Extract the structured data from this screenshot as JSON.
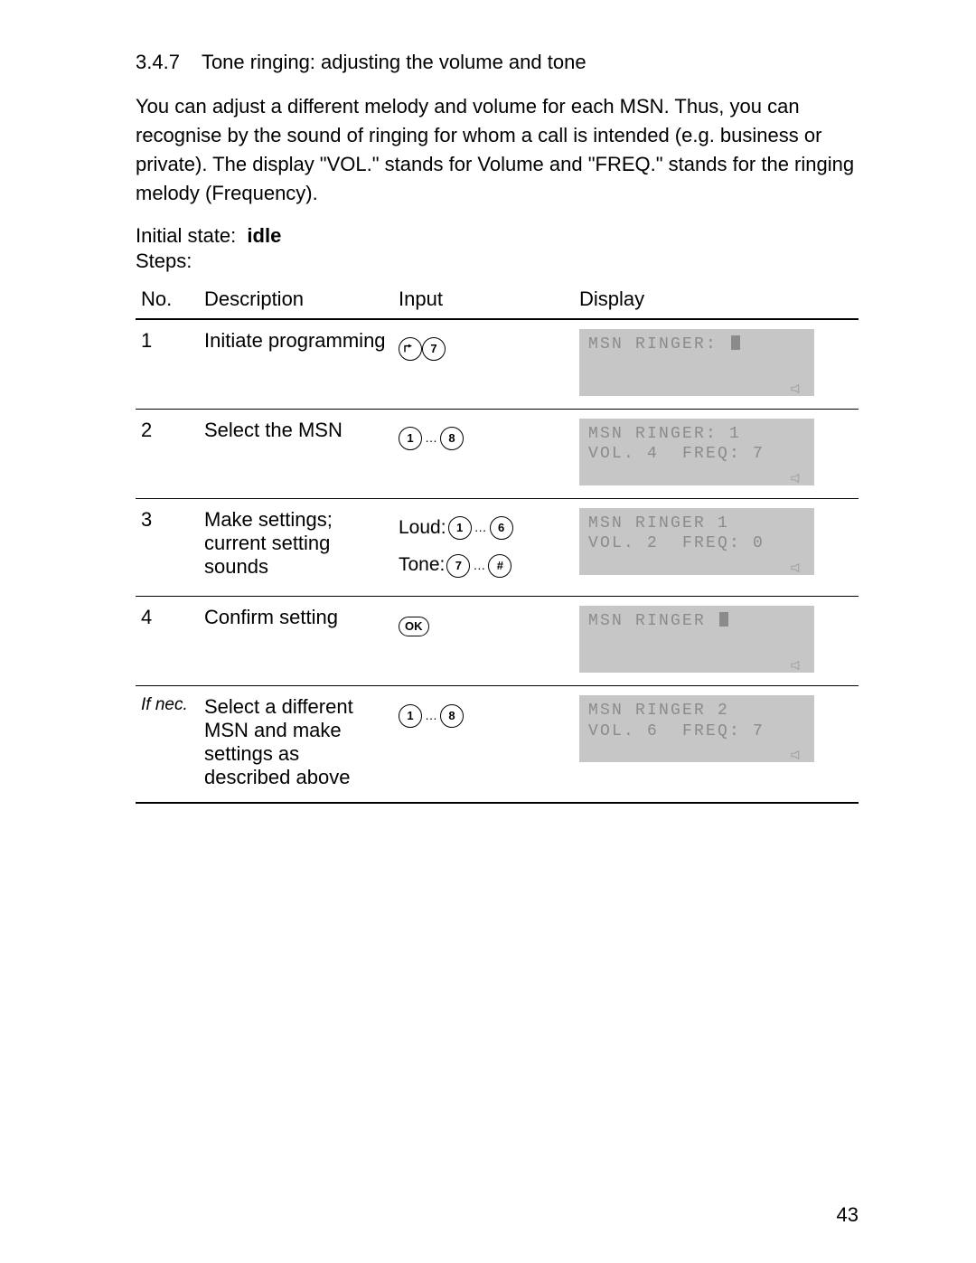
{
  "section_number": "3.4.7",
  "section_title": "Tone ringing: adjusting the volume and tone",
  "intro": "You can adjust a different melody and volume for each MSN. Thus, you can recognise by the sound of ringing for whom a call is intended (e.g. business or private). The display \"VOL.\" stands for Volume and \"FREQ.\" stands for the ringing melody (Frequency).",
  "initial_state_label": "Initial state:",
  "initial_state_value": "idle",
  "steps_label": "Steps:",
  "headers": {
    "no": "No.",
    "desc": "Description",
    "input": "Input",
    "display": "Display"
  },
  "rows": [
    {
      "no": "1",
      "desc": "Initiate programming",
      "input": {
        "lines": [
          {
            "keys": [
              "menu",
              "7"
            ]
          }
        ]
      },
      "lcd": {
        "line1": "MSN RINGER:",
        "cursor_after_line1": true,
        "line2": ""
      }
    },
    {
      "no": "2",
      "desc": "Select the MSN",
      "input": {
        "lines": [
          {
            "keys": [
              "1",
              "…",
              "8"
            ]
          }
        ]
      },
      "lcd": {
        "line1": "MSN RINGER: 1",
        "line2": "VOL. 4  FREQ: 7"
      }
    },
    {
      "no": "3",
      "desc": "Make settings; current setting sounds",
      "input": {
        "lines": [
          {
            "label": "Loud:",
            "keys": [
              "1",
              "…",
              "6"
            ]
          },
          {
            "label": "Tone:",
            "keys": [
              "7",
              "…",
              "#"
            ]
          }
        ]
      },
      "lcd": {
        "line1": "MSN RINGER 1",
        "line2": "VOL. 2  FREQ: 0"
      }
    },
    {
      "no": "4",
      "desc": "Confirm setting",
      "input": {
        "lines": [
          {
            "keys": [
              "OK"
            ]
          }
        ]
      },
      "lcd": {
        "line1": "MSN RINGER",
        "cursor_after_line1": true,
        "line2": ""
      }
    },
    {
      "no": "If nec.",
      "no_italic": true,
      "desc": "Select a different MSN and make settings as described above",
      "input": {
        "lines": [
          {
            "keys": [
              "1",
              "…",
              "8"
            ]
          }
        ]
      },
      "lcd": {
        "line1": "MSN RINGER 2",
        "line2": "VOL. 6  FREQ: 7"
      }
    }
  ],
  "page_number": "43"
}
